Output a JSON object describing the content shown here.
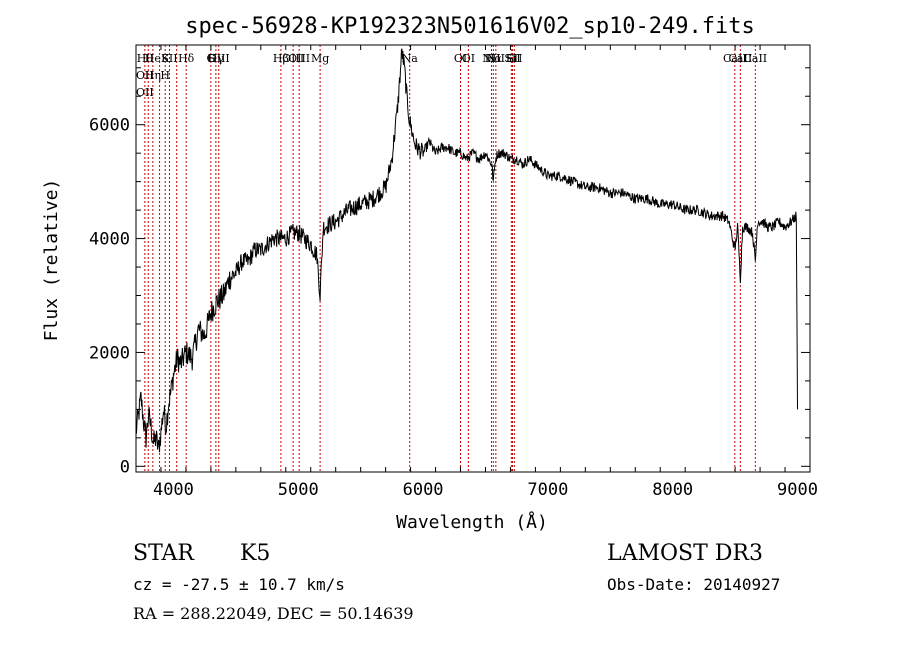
{
  "chart_data": {
    "type": "line",
    "title": "spec-56928-KP192323N501616V02_sp10-249.fits",
    "xlabel": "Wavelength (Å)",
    "ylabel": "Flux (relative)",
    "xlim": [
      3700,
      9100
    ],
    "ylim": [
      -100,
      7400
    ],
    "x_ticks": [
      4000,
      5000,
      6000,
      7000,
      8000,
      9000
    ],
    "y_ticks": [
      0,
      2000,
      4000,
      6000
    ],
    "grid": false,
    "line_color": "#000000",
    "marker_color": "#cc0000",
    "series": [
      {
        "x": [
          3700,
          3720,
          3740,
          3760,
          3780,
          3800,
          3820,
          3840,
          3860,
          3880,
          3900,
          3920,
          3940,
          3960,
          3980,
          4000,
          4030,
          4060,
          4100,
          4150,
          4200,
          4250,
          4300,
          4350,
          4400,
          4450,
          4500,
          4550,
          4600,
          4650,
          4700,
          4750,
          4800,
          4850,
          4900,
          4950,
          5000,
          5050,
          5100,
          5150,
          5175,
          5200,
          5300,
          5400,
          5500,
          5600,
          5700,
          5750,
          5800,
          5830,
          5850,
          5870,
          5890,
          5910,
          5930,
          5950,
          6000,
          6050,
          6100,
          6150,
          6200,
          6250,
          6300,
          6350,
          6400,
          6450,
          6500,
          6550,
          6563,
          6580,
          6600,
          6650,
          6700,
          6750,
          6800,
          6850,
          6900,
          6950,
          7000,
          7100,
          7200,
          7300,
          7400,
          7500,
          7600,
          7700,
          7800,
          7900,
          8000,
          8100,
          8200,
          8300,
          8400,
          8450,
          8498,
          8520,
          8542,
          8560,
          8600,
          8640,
          8662,
          8680,
          8720,
          8760,
          8800,
          8850,
          8900,
          8950,
          8990,
          9000
        ],
        "y": [
          600,
          900,
          1200,
          800,
          500,
          900,
          700,
          400,
          500,
          300,
          600,
          1000,
          700,
          1100,
          1300,
          1600,
          1900,
          1800,
          2000,
          1900,
          2400,
          2300,
          2700,
          2900,
          3000,
          3300,
          3400,
          3600,
          3600,
          3800,
          3800,
          3900,
          4000,
          4000,
          4000,
          4100,
          4100,
          4000,
          3900,
          3700,
          3000,
          4200,
          4300,
          4500,
          4600,
          4700,
          4900,
          5400,
          6400,
          7300,
          7000,
          6500,
          6100,
          5900,
          5700,
          5600,
          5500,
          5700,
          5500,
          5600,
          5600,
          5500,
          5500,
          5400,
          5500,
          5400,
          5500,
          5300,
          5000,
          5400,
          5500,
          5500,
          5400,
          5400,
          5300,
          5400,
          5300,
          5200,
          5100,
          5100,
          5000,
          4900,
          4900,
          4800,
          4800,
          4700,
          4700,
          4600,
          4600,
          4500,
          4500,
          4400,
          4400,
          4300,
          3800,
          4200,
          3300,
          4200,
          4200,
          4100,
          3600,
          4300,
          4300,
          4200,
          4200,
          4300,
          4200,
          4300,
          4400,
          1000
        ]
      }
    ],
    "lines": [
      {
        "x": 3771,
        "labels": [
          "Hθ",
          "OII",
          "OII"
        ]
      },
      {
        "x": 3798,
        "labels": [
          ""
        ]
      },
      {
        "x": 3835,
        "labels": [
          "He",
          "Hη"
        ]
      },
      {
        "x": 3889,
        "labels": [
          ""
        ]
      },
      {
        "x": 3934,
        "labels": [
          "K",
          "H"
        ]
      },
      {
        "x": 3968,
        "labels": [
          "SII"
        ]
      },
      {
        "x": 4026,
        "labels": [
          ""
        ]
      },
      {
        "x": 4102,
        "labels": [
          "Hδ"
        ]
      },
      {
        "x": 4300,
        "labels": [
          "G"
        ]
      },
      {
        "x": 4340,
        "labels": [
          "Hγ"
        ]
      },
      {
        "x": 4363,
        "labels": [
          "OIII"
        ]
      },
      {
        "x": 4861,
        "labels": [
          "Hβ"
        ]
      },
      {
        "x": 4959,
        "labels": [
          "OIII"
        ]
      },
      {
        "x": 5007,
        "labels": [
          "OIII"
        ]
      },
      {
        "x": 5175,
        "labels": [
          "Mg"
        ]
      },
      {
        "x": 5893,
        "labels": [
          "Na"
        ]
      },
      {
        "x": 6300,
        "labels": [
          "OI"
        ]
      },
      {
        "x": 6363,
        "labels": [
          "OI"
        ]
      },
      {
        "x": 6548,
        "labels": [
          "NII"
        ]
      },
      {
        "x": 6563,
        "labels": [
          "Hα"
        ]
      },
      {
        "x": 6583,
        "labels": [
          "NII"
        ]
      },
      {
        "x": 6707,
        "labels": [
          "Li"
        ]
      },
      {
        "x": 6716,
        "labels": [
          "SII"
        ]
      },
      {
        "x": 6731,
        "labels": [
          "SII"
        ]
      },
      {
        "x": 8498,
        "labels": [
          "CaII"
        ]
      },
      {
        "x": 8542,
        "labels": [
          "CaII"
        ]
      },
      {
        "x": 8662,
        "labels": [
          "CaII"
        ]
      }
    ]
  },
  "info": {
    "object_class": "STAR",
    "subclass": "K5",
    "survey": "LAMOST DR3",
    "cz": "cz = -27.5 ± 10.7 km/s",
    "obs_date": "Obs-Date: 20140927",
    "coords": "RA = 288.22049, DEC =  50.14639"
  }
}
